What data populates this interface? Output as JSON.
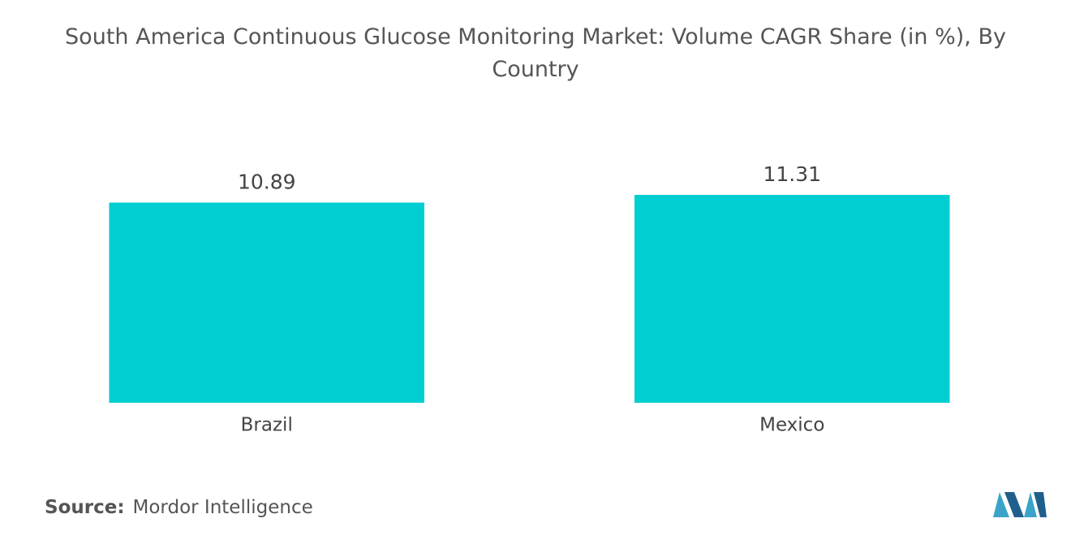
{
  "chart_data": {
    "type": "bar",
    "title": "South America Continuous Glucose Monitoring Market: Volume CAGR Share (in %), By Country",
    "categories": [
      "Brazil",
      "Mexico"
    ],
    "values": [
      10.89,
      11.31
    ],
    "color": "#00ced1",
    "source_label": "Source:",
    "source": "Mordor Intelligence"
  }
}
